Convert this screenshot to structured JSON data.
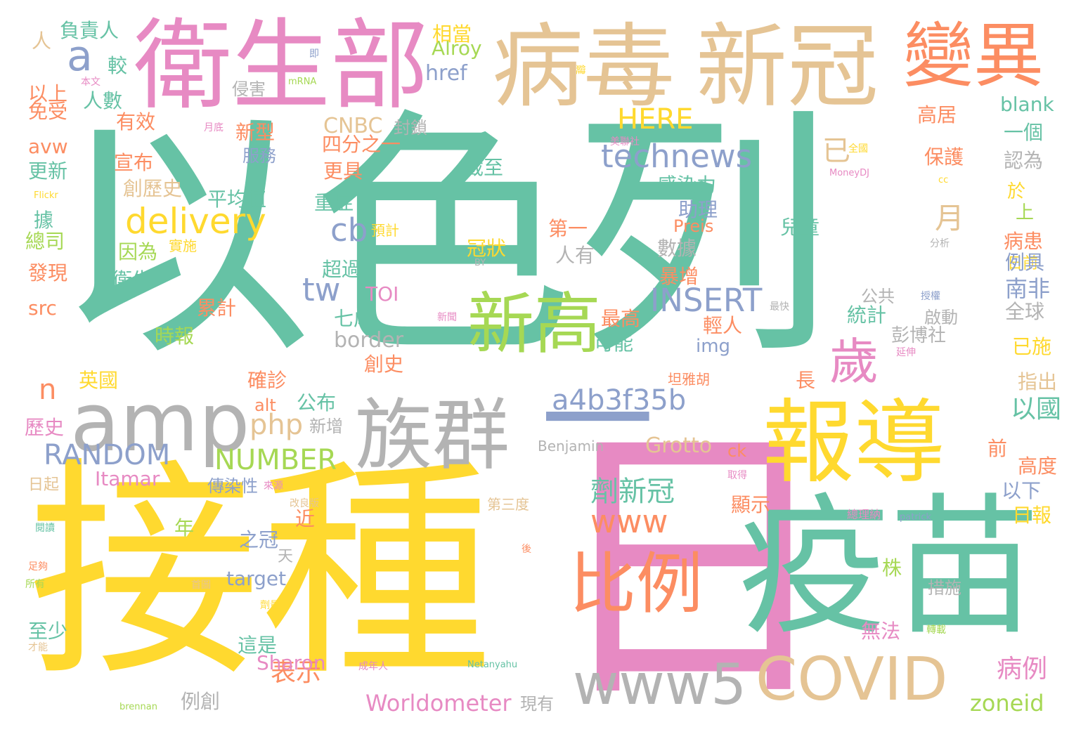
{
  "palette": {
    "teal": "#66c2a5",
    "yellow": "#ffd92f",
    "pink": "#e78ac3",
    "tan": "#e5c494",
    "orange": "#fc8d62",
    "blue": "#8da0cb",
    "green": "#a6d854",
    "gray": "#b3b3b3"
  },
  "words": [
    {
      "text": "以色列",
      "color": "teal"
    },
    {
      "text": "接種",
      "color": "yellow"
    },
    {
      "text": "日",
      "color": "pink"
    },
    {
      "text": "疫苗",
      "color": "teal"
    },
    {
      "text": "衛生部",
      "color": "pink"
    },
    {
      "text": "病毒",
      "color": "tan"
    },
    {
      "text": "新冠",
      "color": "tan"
    },
    {
      "text": "變異",
      "color": "orange"
    },
    {
      "text": "報導",
      "color": "yellow"
    },
    {
      "text": "amp",
      "color": "gray"
    },
    {
      "text": "族群",
      "color": "gray"
    },
    {
      "text": "新高",
      "color": "green"
    },
    {
      "text": "比例",
      "color": "orange"
    },
    {
      "text": "COVID",
      "color": "tan"
    },
    {
      "text": "www5",
      "color": "gray"
    },
    {
      "text": "歲",
      "color": "pink"
    },
    {
      "text": "一",
      "color": "blue"
    },
    {
      "text": "a",
      "color": "blue"
    },
    {
      "text": "a4b3f35b",
      "color": "blue"
    },
    {
      "text": "technews",
      "color": "blue"
    },
    {
      "text": "delivery",
      "color": "yellow"
    },
    {
      "text": "INSERT",
      "color": "blue"
    },
    {
      "text": "RANDOM",
      "color": "blue"
    },
    {
      "text": "NUMBER",
      "color": "green"
    },
    {
      "text": "php",
      "color": "tan"
    },
    {
      "text": "www",
      "color": "orange"
    },
    {
      "text": "HERE",
      "color": "yellow"
    },
    {
      "text": "cb",
      "color": "blue"
    },
    {
      "text": "tw",
      "color": "blue"
    },
    {
      "text": "劑新冠",
      "color": "teal"
    },
    {
      "text": "月",
      "color": "tan"
    },
    {
      "text": "已",
      "color": "tan"
    },
    {
      "text": "n",
      "color": "orange"
    },
    {
      "text": "以國",
      "color": "teal"
    },
    {
      "text": "南非",
      "color": "blue"
    },
    {
      "text": "表示",
      "color": "orange"
    },
    {
      "text": "病例",
      "color": "pink"
    },
    {
      "text": "Worldometer",
      "color": "pink"
    },
    {
      "text": "zoneid",
      "color": "green"
    },
    {
      "text": "Sharon",
      "color": "pink"
    },
    {
      "text": "Grotto",
      "color": "tan"
    },
    {
      "text": "target",
      "color": "blue"
    },
    {
      "text": "blank",
      "color": "teal"
    },
    {
      "text": "Itamar",
      "color": "pink"
    },
    {
      "text": "CNBC",
      "color": "tan"
    },
    {
      "text": "href",
      "color": "blue"
    },
    {
      "text": "Alroy",
      "color": "green"
    },
    {
      "text": "border",
      "color": "gray"
    },
    {
      "text": "img",
      "color": "blue"
    },
    {
      "text": "Preis",
      "color": "orange"
    },
    {
      "text": "src",
      "color": "orange"
    },
    {
      "text": "avw",
      "color": "orange"
    },
    {
      "text": "alt",
      "color": "orange"
    },
    {
      "text": "ck",
      "color": "orange"
    },
    {
      "text": "TOI",
      "color": "pink"
    },
    {
      "text": "Benjamin",
      "color": "gray"
    },
    {
      "text": "Netanyahu",
      "color": "teal"
    },
    {
      "text": "brennan",
      "color": "green"
    },
    {
      "text": "patrick",
      "color": "blue"
    },
    {
      "text": "MoneyDJ",
      "color": "pink"
    },
    {
      "text": "mRNA",
      "color": "green"
    },
    {
      "text": "Flickr",
      "color": "yellow"
    },
    {
      "text": "BY",
      "color": "gray"
    },
    {
      "text": "cc",
      "color": "yellow"
    },
    {
      "text": "負責人",
      "color": "teal"
    },
    {
      "text": "人",
      "color": "tan"
    },
    {
      "text": "即",
      "color": "blue"
    },
    {
      "text": "較",
      "color": "teal"
    },
    {
      "text": "本文",
      "color": "pink"
    },
    {
      "text": "以上",
      "color": "orange"
    },
    {
      "text": "人數",
      "color": "teal"
    },
    {
      "text": "侵害",
      "color": "gray"
    },
    {
      "text": "免受",
      "color": "orange"
    },
    {
      "text": "有效",
      "color": "orange"
    },
    {
      "text": "月底",
      "color": "pink"
    },
    {
      "text": "新型",
      "color": "orange"
    },
    {
      "text": "封鎖",
      "color": "gray"
    },
    {
      "text": "服務",
      "color": "blue"
    },
    {
      "text": "四分之一",
      "color": "orange"
    },
    {
      "text": "宣布",
      "color": "orange"
    },
    {
      "text": "更新",
      "color": "teal"
    },
    {
      "text": "更具",
      "color": "orange"
    },
    {
      "text": "截至",
      "color": "teal"
    },
    {
      "text": "創歷史",
      "color": "tan"
    },
    {
      "text": "平均值",
      "color": "teal"
    },
    {
      "text": "重症",
      "color": "teal"
    },
    {
      "text": "感染力",
      "color": "teal"
    },
    {
      "text": "助理",
      "color": "blue"
    },
    {
      "text": "據",
      "color": "teal"
    },
    {
      "text": "總司",
      "color": "green"
    },
    {
      "text": "因為",
      "color": "green"
    },
    {
      "text": "實施",
      "color": "yellow"
    },
    {
      "text": "預計",
      "color": "yellow"
    },
    {
      "text": "冠狀",
      "color": "yellow"
    },
    {
      "text": "第一",
      "color": "orange"
    },
    {
      "text": "兒童",
      "color": "teal"
    },
    {
      "text": "數據",
      "color": "gray"
    },
    {
      "text": "人有",
      "color": "gray"
    },
    {
      "text": "發現",
      "color": "orange"
    },
    {
      "text": "超過",
      "color": "teal"
    },
    {
      "text": "衛生",
      "color": "teal"
    },
    {
      "text": "暴增",
      "color": "orange"
    },
    {
      "text": "累計",
      "color": "orange"
    },
    {
      "text": "七成",
      "color": "teal"
    },
    {
      "text": "時報",
      "color": "green"
    },
    {
      "text": "統計",
      "color": "teal"
    },
    {
      "text": "最高",
      "color": "orange"
    },
    {
      "text": "輕人",
      "color": "orange"
    },
    {
      "text": "可能",
      "color": "teal"
    },
    {
      "text": "創史",
      "color": "orange"
    },
    {
      "text": "英國",
      "color": "yellow"
    },
    {
      "text": "確診",
      "color": "orange"
    },
    {
      "text": "長",
      "color": "orange"
    },
    {
      "text": "公布",
      "color": "teal"
    },
    {
      "text": "坦雅胡",
      "color": "orange"
    },
    {
      "text": "新增",
      "color": "gray"
    },
    {
      "text": "歷史",
      "color": "pink"
    },
    {
      "text": "日起",
      "color": "tan"
    },
    {
      "text": "傳染性",
      "color": "blue"
    },
    {
      "text": "來源",
      "color": "pink"
    },
    {
      "text": "改良版",
      "color": "tan"
    },
    {
      "text": "取得",
      "color": "pink"
    },
    {
      "text": "顯示",
      "color": "orange"
    },
    {
      "text": "年",
      "color": "green"
    },
    {
      "text": "近",
      "color": "orange"
    },
    {
      "text": "之冠",
      "color": "blue"
    },
    {
      "text": "天",
      "color": "gray"
    },
    {
      "text": "第三度",
      "color": "tan"
    },
    {
      "text": "總理納",
      "color": "pink"
    },
    {
      "text": "後",
      "color": "orange"
    },
    {
      "text": "閱讀",
      "color": "teal"
    },
    {
      "text": "足夠",
      "color": "orange"
    },
    {
      "text": "所有",
      "color": "green"
    },
    {
      "text": "首圖",
      "color": "tan"
    },
    {
      "text": "劑量",
      "color": "yellow"
    },
    {
      "text": "株",
      "color": "green"
    },
    {
      "text": "措施",
      "color": "gray"
    },
    {
      "text": "至少",
      "color": "teal"
    },
    {
      "text": "才能",
      "color": "tan"
    },
    {
      "text": "這是",
      "color": "teal"
    },
    {
      "text": "成年人",
      "color": "pink"
    },
    {
      "text": "無法",
      "color": "pink"
    },
    {
      "text": "轉載",
      "color": "green"
    },
    {
      "text": "例創",
      "color": "gray"
    },
    {
      "text": "現有",
      "color": "gray"
    },
    {
      "text": "相當",
      "color": "yellow"
    },
    {
      "text": "高居",
      "color": "orange"
    },
    {
      "text": "一個",
      "color": "teal"
    },
    {
      "text": "保護",
      "color": "orange"
    },
    {
      "text": "認為",
      "color": "gray"
    },
    {
      "text": "美聯社",
      "color": "pink"
    },
    {
      "text": "全國",
      "color": "yellow"
    },
    {
      "text": "於",
      "color": "yellow"
    },
    {
      "text": "上",
      "color": "green"
    },
    {
      "text": "病患",
      "color": "orange"
    },
    {
      "text": "分析",
      "color": "gray"
    },
    {
      "text": "日前",
      "color": "yellow"
    },
    {
      "text": "例具",
      "color": "blue"
    },
    {
      "text": "公共",
      "color": "gray"
    },
    {
      "text": "授權",
      "color": "blue"
    },
    {
      "text": "最快",
      "color": "gray"
    },
    {
      "text": "全球",
      "color": "gray"
    },
    {
      "text": "啟動",
      "color": "gray"
    },
    {
      "text": "新聞",
      "color": "pink"
    },
    {
      "text": "彭博社",
      "color": "gray"
    },
    {
      "text": "延伸",
      "color": "pink"
    },
    {
      "text": "已施",
      "color": "yellow"
    },
    {
      "text": "指出",
      "color": "tan"
    },
    {
      "text": "前",
      "color": "orange"
    },
    {
      "text": "高度",
      "color": "orange"
    },
    {
      "text": "以下",
      "color": "blue"
    },
    {
      "text": "日報",
      "color": "yellow"
    },
    {
      "text": "鍵",
      "color": "yellow"
    }
  ]
}
